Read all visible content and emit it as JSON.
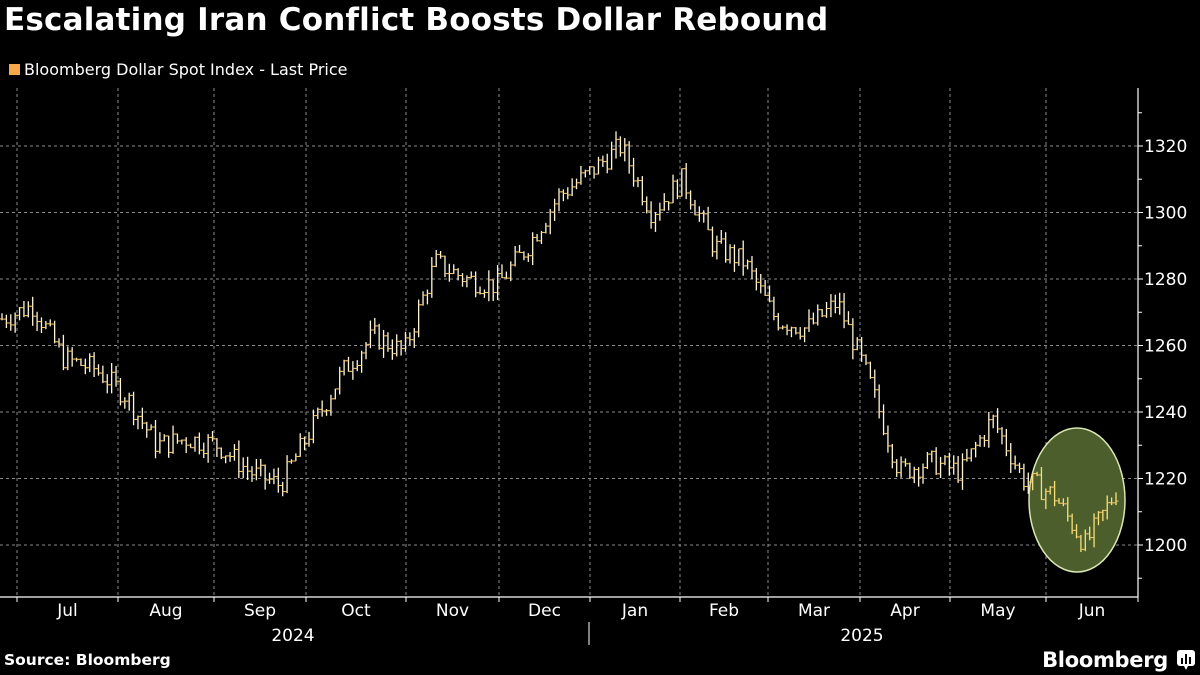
{
  "header": {
    "title": "Escalating Iran Conflict Boosts Dollar Rebound",
    "legend_label": "Bloomberg Dollar Spot Index - Last Price"
  },
  "footer": {
    "source": "Source: Bloomberg",
    "brand": "Bloomberg"
  },
  "colors": {
    "background": "#000000",
    "series": "#fff5d6",
    "legend_swatch": "#f6a84a",
    "highlight_fill": "#4b5e2c",
    "highlight_stroke": "#d9e6b0",
    "grid": "#8a8a8a"
  },
  "chart_data": {
    "type": "line",
    "subtype": "ohlc-bar",
    "title": "Escalating Iran Conflict Boosts Dollar Rebound",
    "series_name": "Bloomberg Dollar Spot Index - Last Price",
    "xlabel": "",
    "ylabel": "",
    "ylim": [
      1188,
      1335
    ],
    "yticks": [
      1200,
      1220,
      1240,
      1260,
      1280,
      1300,
      1320
    ],
    "y_axis_position": "right",
    "x_month_labels": [
      "Jul",
      "Aug",
      "Sep",
      "Oct",
      "Nov",
      "Dec",
      "Jan",
      "Feb",
      "Mar",
      "Apr",
      "May",
      "Jun"
    ],
    "x_year_labels": [
      {
        "label": "2024",
        "under": "Sep-Oct"
      },
      {
        "label": "2025",
        "under": "Mar-Apr"
      }
    ],
    "grid": true,
    "legend_position": "top-left",
    "annotation": "Highlighted ellipse around June 2025 rebound (approx. 1198-1225)",
    "approx_points": [
      {
        "x": "Late Jun 2024",
        "y": 1268
      },
      {
        "x": "Early Jul 2024",
        "y": 1272
      },
      {
        "x": "Mid Jul 2024",
        "y": 1256
      },
      {
        "x": "Late Jul 2024",
        "y": 1253
      },
      {
        "x": "Early Aug 2024",
        "y": 1245
      },
      {
        "x": "Mid Aug 2024",
        "y": 1230
      },
      {
        "x": "Late Aug 2024",
        "y": 1232
      },
      {
        "x": "Early Sep 2024",
        "y": 1230
      },
      {
        "x": "Mid Sep 2024",
        "y": 1222
      },
      {
        "x": "Late Sep 2024",
        "y": 1218
      },
      {
        "x": "Early Oct 2024",
        "y": 1235
      },
      {
        "x": "Mid Oct 2024",
        "y": 1252
      },
      {
        "x": "Late Oct 2024",
        "y": 1263
      },
      {
        "x": "Early Nov 2024",
        "y": 1258
      },
      {
        "x": "Mid Nov 2024",
        "y": 1285
      },
      {
        "x": "Late Nov 2024",
        "y": 1280
      },
      {
        "x": "Early Dec 2024",
        "y": 1278
      },
      {
        "x": "Mid Dec 2024",
        "y": 1290
      },
      {
        "x": "Late Dec 2024",
        "y": 1305
      },
      {
        "x": "Early Jan 2025",
        "y": 1312
      },
      {
        "x": "Mid Jan 2025",
        "y": 1320
      },
      {
        "x": "Late Jan 2025",
        "y": 1300
      },
      {
        "x": "Early Feb 2025",
        "y": 1310
      },
      {
        "x": "Mid Feb 2025",
        "y": 1290
      },
      {
        "x": "Late Feb 2025",
        "y": 1285
      },
      {
        "x": "Early Mar 2025",
        "y": 1268
      },
      {
        "x": "Mid Mar 2025",
        "y": 1265
      },
      {
        "x": "Late Mar 2025",
        "y": 1273
      },
      {
        "x": "Early Apr 2025",
        "y": 1250
      },
      {
        "x": "Mid Apr 2025",
        "y": 1222
      },
      {
        "x": "Late Apr 2025",
        "y": 1225
      },
      {
        "x": "Early May 2025",
        "y": 1222
      },
      {
        "x": "Mid May 2025",
        "y": 1238
      },
      {
        "x": "Late May 2025",
        "y": 1220
      },
      {
        "x": "Early Jun 2025",
        "y": 1215
      },
      {
        "x": "Mid Jun 2025",
        "y": 1200
      },
      {
        "x": "Late Jun 2025",
        "y": 1216
      }
    ]
  }
}
